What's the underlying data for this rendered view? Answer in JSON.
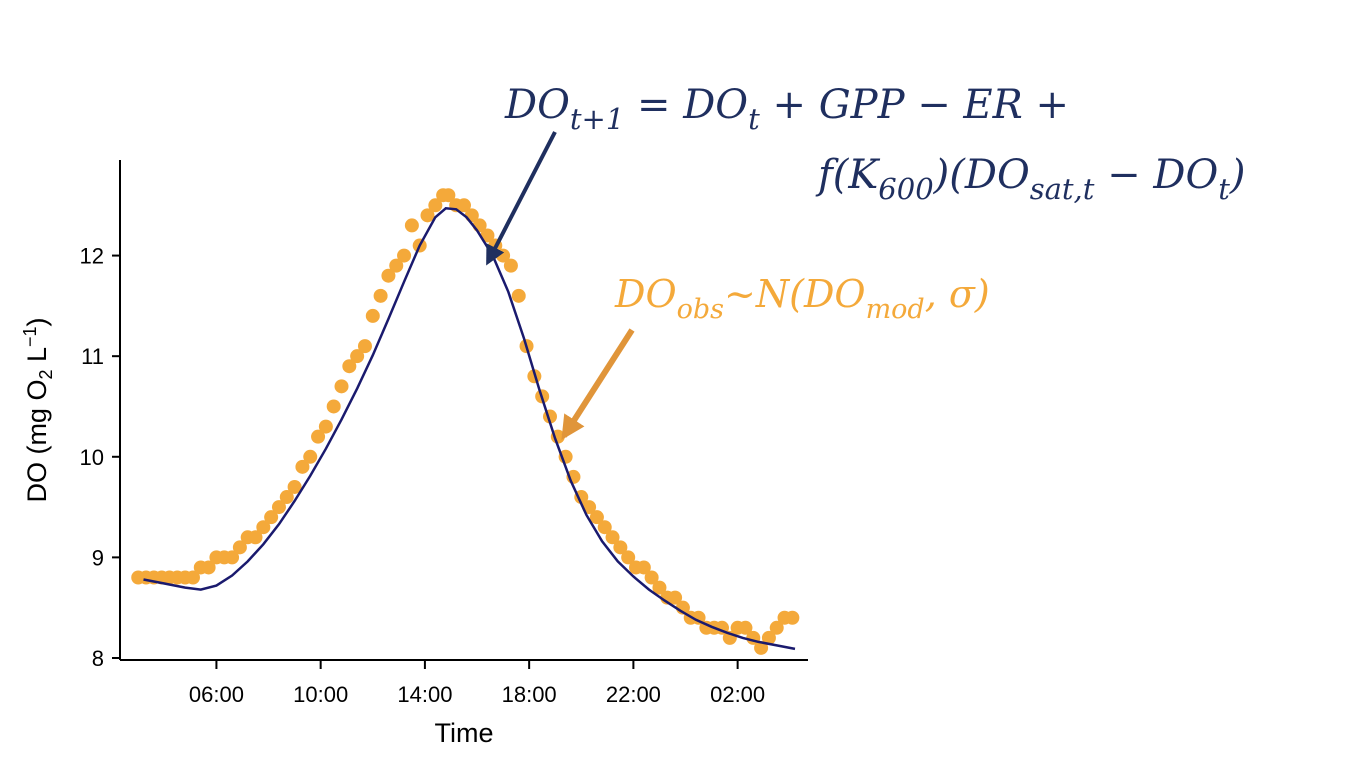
{
  "chart_data": {
    "type": "scatter",
    "xlabel": "Time",
    "ylabel": "DO (mg O2 L−1)",
    "ylabel_parts": {
      "pre": "DO (mg O",
      "sub": "2",
      "mid": " L",
      "sup": "−1",
      "post": ")"
    },
    "x_ticks": [
      "06:00",
      "10:00",
      "14:00",
      "18:00",
      "22:00",
      "02:00"
    ],
    "y_ticks": [
      "8",
      "9",
      "10",
      "11",
      "12"
    ],
    "ylim": [
      7.98,
      12.95
    ],
    "xlim_hours": [
      2.3,
      28.7
    ],
    "x_tick_hours": [
      6,
      10,
      14,
      18,
      22,
      26
    ],
    "series": [
      {
        "style": "points",
        "color": "#f4a93a",
        "points": [
          [
            3.0,
            8.8
          ],
          [
            3.3,
            8.8
          ],
          [
            3.6,
            8.8
          ],
          [
            3.9,
            8.8
          ],
          [
            4.2,
            8.8
          ],
          [
            4.5,
            8.8
          ],
          [
            4.8,
            8.8
          ],
          [
            5.1,
            8.8
          ],
          [
            5.4,
            8.9
          ],
          [
            5.7,
            8.9
          ],
          [
            6.0,
            9.0
          ],
          [
            6.3,
            9.0
          ],
          [
            6.6,
            9.0
          ],
          [
            6.9,
            9.1
          ],
          [
            7.2,
            9.2
          ],
          [
            7.5,
            9.2
          ],
          [
            7.8,
            9.3
          ],
          [
            8.1,
            9.4
          ],
          [
            8.4,
            9.5
          ],
          [
            8.7,
            9.6
          ],
          [
            9.0,
            9.7
          ],
          [
            9.3,
            9.9
          ],
          [
            9.6,
            10.0
          ],
          [
            9.9,
            10.2
          ],
          [
            10.2,
            10.3
          ],
          [
            10.5,
            10.5
          ],
          [
            10.8,
            10.7
          ],
          [
            11.1,
            10.9
          ],
          [
            11.4,
            11.0
          ],
          [
            11.7,
            11.1
          ],
          [
            12.0,
            11.4
          ],
          [
            12.3,
            11.6
          ],
          [
            12.6,
            11.8
          ],
          [
            12.9,
            11.9
          ],
          [
            13.2,
            12.0
          ],
          [
            13.5,
            12.3
          ],
          [
            13.8,
            12.1
          ],
          [
            14.1,
            12.4
          ],
          [
            14.4,
            12.5
          ],
          [
            14.7,
            12.6
          ],
          [
            14.9,
            12.6
          ],
          [
            15.2,
            12.5
          ],
          [
            15.5,
            12.5
          ],
          [
            15.8,
            12.4
          ],
          [
            16.1,
            12.3
          ],
          [
            16.4,
            12.2
          ],
          [
            16.7,
            12.1
          ],
          [
            17.0,
            12.0
          ],
          [
            17.3,
            11.9
          ],
          [
            17.6,
            11.6
          ],
          [
            17.9,
            11.1
          ],
          [
            18.2,
            10.8
          ],
          [
            18.5,
            10.6
          ],
          [
            18.8,
            10.4
          ],
          [
            19.1,
            10.2
          ],
          [
            19.4,
            10.0
          ],
          [
            19.7,
            9.8
          ],
          [
            20.0,
            9.6
          ],
          [
            20.3,
            9.5
          ],
          [
            20.6,
            9.4
          ],
          [
            20.9,
            9.3
          ],
          [
            21.2,
            9.2
          ],
          [
            21.5,
            9.1
          ],
          [
            21.8,
            9.0
          ],
          [
            22.1,
            8.9
          ],
          [
            22.4,
            8.9
          ],
          [
            22.7,
            8.8
          ],
          [
            23.0,
            8.7
          ],
          [
            23.3,
            8.6
          ],
          [
            23.6,
            8.6
          ],
          [
            23.9,
            8.5
          ],
          [
            24.2,
            8.4
          ],
          [
            24.5,
            8.4
          ],
          [
            24.8,
            8.3
          ],
          [
            25.1,
            8.3
          ],
          [
            25.4,
            8.3
          ],
          [
            25.7,
            8.2
          ],
          [
            26.0,
            8.3
          ],
          [
            26.3,
            8.3
          ],
          [
            26.6,
            8.2
          ],
          [
            26.9,
            8.1
          ],
          [
            27.2,
            8.2
          ],
          [
            27.5,
            8.3
          ],
          [
            27.8,
            8.4
          ],
          [
            28.1,
            8.4
          ]
        ]
      },
      {
        "style": "line",
        "color": "#1a1a6e",
        "points": [
          [
            3.2,
            8.78
          ],
          [
            4.0,
            8.74
          ],
          [
            4.8,
            8.7
          ],
          [
            5.4,
            8.68
          ],
          [
            6.0,
            8.72
          ],
          [
            6.6,
            8.82
          ],
          [
            7.2,
            8.96
          ],
          [
            7.8,
            9.13
          ],
          [
            8.4,
            9.33
          ],
          [
            9.0,
            9.56
          ],
          [
            9.6,
            9.81
          ],
          [
            10.2,
            10.08
          ],
          [
            10.8,
            10.37
          ],
          [
            11.4,
            10.68
          ],
          [
            12.0,
            11.01
          ],
          [
            12.6,
            11.37
          ],
          [
            13.2,
            11.74
          ],
          [
            13.8,
            12.1
          ],
          [
            14.4,
            12.38
          ],
          [
            14.8,
            12.47
          ],
          [
            15.2,
            12.46
          ],
          [
            15.6,
            12.38
          ],
          [
            16.0,
            12.25
          ],
          [
            16.6,
            12.0
          ],
          [
            17.2,
            11.64
          ],
          [
            17.8,
            11.18
          ],
          [
            18.4,
            10.66
          ],
          [
            19.0,
            10.18
          ],
          [
            19.6,
            9.76
          ],
          [
            20.2,
            9.42
          ],
          [
            20.8,
            9.16
          ],
          [
            21.4,
            8.96
          ],
          [
            22.0,
            8.81
          ],
          [
            22.6,
            8.68
          ],
          [
            23.2,
            8.57
          ],
          [
            23.8,
            8.47
          ],
          [
            24.4,
            8.38
          ],
          [
            25.0,
            8.31
          ],
          [
            25.6,
            8.25
          ],
          [
            26.2,
            8.2
          ],
          [
            26.8,
            8.16
          ],
          [
            27.4,
            8.13
          ],
          [
            28.0,
            8.1
          ],
          [
            28.2,
            8.09
          ]
        ]
      }
    ]
  },
  "equations": {
    "process": {
      "line1": [
        {
          "t": "DO"
        },
        {
          "t": "t+1",
          "sub": true
        },
        {
          "t": " = DO"
        },
        {
          "t": "t",
          "sub": true
        },
        {
          "t": " + GPP − ER +"
        }
      ],
      "line2": [
        {
          "t": "f(K"
        },
        {
          "t": "600",
          "sub": true
        },
        {
          "t": ")(DO"
        },
        {
          "t": "sat,t",
          "sub": true
        },
        {
          "t": " − DO"
        },
        {
          "t": "t",
          "sub": true
        },
        {
          "t": ")"
        }
      ],
      "color": "#1f2f5f"
    },
    "observation": {
      "line": [
        {
          "t": "DO"
        },
        {
          "t": "obs",
          "sub": true
        },
        {
          "t": "~N(DO"
        },
        {
          "t": "mod",
          "sub": true
        },
        {
          "t": ", σ)"
        }
      ],
      "color": "#f4a93a"
    }
  },
  "arrow_colors": {
    "process": "#1f2f5f",
    "observation": "#e0953a"
  }
}
